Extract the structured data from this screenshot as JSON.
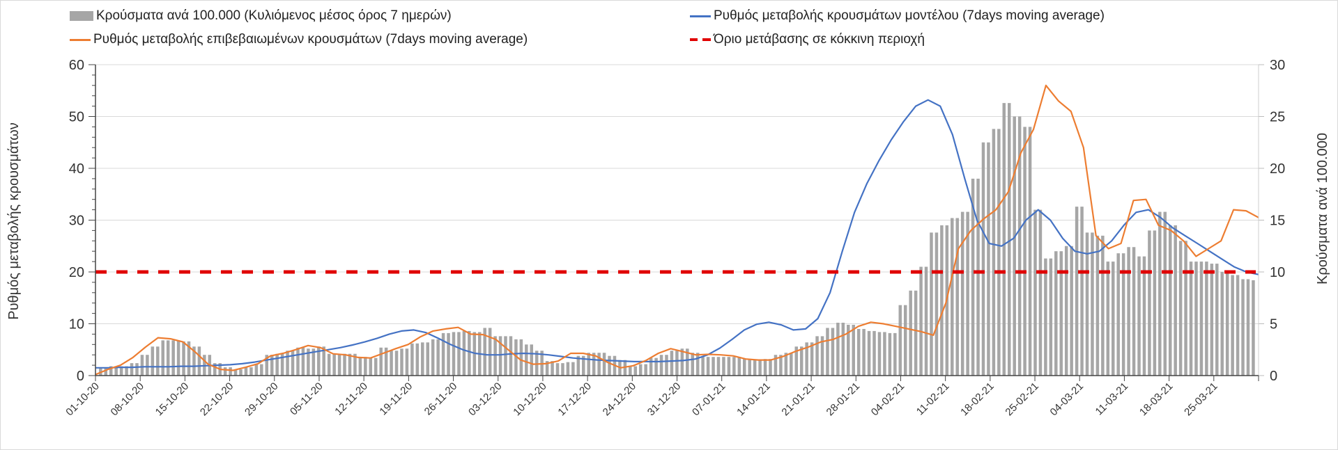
{
  "chart_data": {
    "type": "bar",
    "title": "",
    "legend": {
      "placement": "top",
      "entries": [
        {
          "key": "bars",
          "label": "Κρούσματα ανά 100.000 (Κυλιόμενος μέσος όρος 7 ημερών)",
          "color": "#a6a6a6",
          "style": "bar"
        },
        {
          "key": "model",
          "label": "Ρυθμός μεταβολής κρουσμάτων μοντέλου (7days moving average)",
          "color": "#4472c4",
          "style": "line"
        },
        {
          "key": "confirmed",
          "label": "Ρυθμός μεταβολής επιβεβαιωμένων κρουσμάτων (7days moving average)",
          "color": "#ed7d31",
          "style": "line"
        },
        {
          "key": "threshold",
          "label": "Όριο μετάβασης σε κόκκινη περιοχή",
          "color": "#e00000",
          "style": "dashed"
        }
      ]
    },
    "ylabel": "Ρυθμός μεταβολής κρουσμάτων",
    "ylim": [
      0,
      60
    ],
    "yticks": [
      0,
      10,
      20,
      30,
      40,
      50,
      60
    ],
    "y2label": "Κρούσματα ανά 100.000",
    "y2lim": [
      0,
      30
    ],
    "y2ticks": [
      0,
      5,
      10,
      15,
      20,
      25,
      30
    ],
    "grid": true,
    "x_start": "01-10-20",
    "x_step_days": 2,
    "x_ticks": [
      "01-10-20",
      "08-10-20",
      "15-10-20",
      "22-10-20",
      "29-10-20",
      "05-11-20",
      "12-11-20",
      "19-11-20",
      "26-11-20",
      "03-12-20",
      "10-12-20",
      "17-12-20",
      "24-12-20",
      "31-12-20",
      "07-01-21",
      "14-01-21",
      "21-01-21",
      "28-01-21",
      "04-02-21",
      "11-02-21",
      "18-02-21",
      "25-02-21",
      "04-03-21",
      "11-03-21",
      "18-03-21",
      "25-03-21"
    ],
    "threshold": 20,
    "series": [
      {
        "name": "Κρούσματα ανά 100.000",
        "axis": "right",
        "type": "bar",
        "values": [
          0.7,
          0.9,
          0.9,
          1.2,
          2.0,
          2.8,
          3.4,
          3.4,
          3.3,
          2.8,
          2.0,
          1.2,
          0.8,
          0.6,
          0.8,
          1.1,
          2.0,
          2.1,
          2.4,
          2.7,
          2.6,
          2.8,
          2.1,
          2.1,
          2.1,
          1.8,
          1.7,
          2.7,
          2.4,
          2.6,
          3.1,
          3.2,
          3.5,
          4.1,
          4.2,
          4.3,
          4.2,
          4.6,
          3.8,
          3.8,
          3.5,
          3.0,
          2.4,
          1.4,
          1.2,
          1.3,
          1.9,
          2.2,
          2.2,
          1.9,
          1.5,
          0.9,
          1.1,
          1.7,
          2.0,
          2.4,
          2.6,
          2.2,
          1.8,
          1.8,
          1.8,
          1.8,
          1.6,
          1.5,
          1.6,
          2.0,
          2.2,
          2.8,
          3.2,
          3.8,
          4.6,
          5.1,
          4.9,
          4.5,
          4.3,
          4.2,
          4.1,
          6.8,
          8.2,
          10.5,
          13.8,
          14.5,
          15.2,
          15.8,
          19.0,
          22.5,
          23.8,
          26.3,
          25.0,
          24.0,
          16.0,
          11.3,
          12.0,
          12.5,
          16.3,
          13.8,
          13.5,
          11.0,
          11.8,
          12.4,
          11.5,
          14.0,
          15.8,
          14.5,
          13.0,
          11.0,
          11.0,
          10.8,
          10.0,
          9.7,
          9.3,
          9.2
        ]
      },
      {
        "name": "Ρυθμός μεταβολής κρουσμάτων μοντέλου",
        "axis": "left",
        "type": "line",
        "values": [
          1.5,
          1.5,
          1.6,
          1.6,
          1.7,
          1.7,
          1.7,
          1.8,
          1.8,
          1.9,
          2.0,
          2.1,
          2.3,
          2.6,
          3.0,
          3.4,
          3.8,
          4.2,
          4.6,
          5.0,
          5.4,
          5.9,
          6.5,
          7.2,
          8.0,
          8.6,
          8.8,
          8.3,
          7.2,
          6.0,
          5.0,
          4.3,
          4.0,
          4.0,
          4.2,
          4.3,
          4.2,
          4.0,
          3.7,
          3.4,
          3.2,
          3.0,
          2.9,
          2.8,
          2.7,
          2.7,
          2.7,
          2.8,
          2.9,
          3.2,
          4.0,
          5.3,
          7.0,
          8.8,
          9.9,
          10.3,
          9.8,
          8.8,
          9.0,
          11.0,
          16.0,
          24.0,
          31.5,
          37.0,
          41.5,
          45.5,
          49.0,
          52.0,
          53.2,
          52.0,
          46.5,
          38.0,
          30.0,
          25.5,
          25.0,
          26.5,
          30.0,
          32.0,
          30.0,
          26.5,
          24.0,
          23.5,
          24.0,
          26.0,
          29.0,
          31.5,
          32.0,
          30.5,
          28.5,
          27.0,
          25.5,
          24.0,
          22.5,
          21.0,
          20.0,
          19.5
        ]
      },
      {
        "name": "Ρυθμός μεταβολής επιβεβαιωμένων κρουσμάτων",
        "axis": "left",
        "type": "line",
        "values": [
          0.2,
          1.2,
          2.0,
          3.5,
          5.5,
          7.3,
          7.1,
          6.5,
          4.5,
          2.2,
          1.2,
          1.0,
          1.6,
          2.3,
          3.8,
          4.3,
          5.0,
          5.8,
          5.4,
          4.2,
          4.0,
          3.5,
          3.4,
          4.3,
          5.2,
          6.0,
          7.5,
          8.6,
          9.0,
          9.3,
          8.0,
          7.9,
          7.0,
          5.0,
          3.0,
          2.2,
          2.3,
          2.8,
          4.3,
          4.3,
          3.8,
          2.5,
          1.5,
          1.9,
          2.9,
          4.3,
          5.2,
          4.6,
          4.0,
          4.1,
          4.0,
          3.8,
          3.2,
          3.0,
          3.0,
          3.7,
          4.7,
          5.5,
          6.5,
          7.0,
          8.0,
          9.5,
          10.3,
          10.0,
          9.5,
          9.0,
          8.5,
          7.8,
          14.0,
          24.5,
          28.0,
          30.2,
          32.0,
          35.5,
          43.0,
          47.5,
          56.0,
          53.0,
          51.0,
          44.0,
          27.0,
          24.5,
          25.5,
          33.8,
          34.0,
          29.0,
          28.0,
          26.0,
          23.0,
          24.5,
          26.0,
          32.0,
          31.8,
          30.5
        ]
      }
    ]
  }
}
